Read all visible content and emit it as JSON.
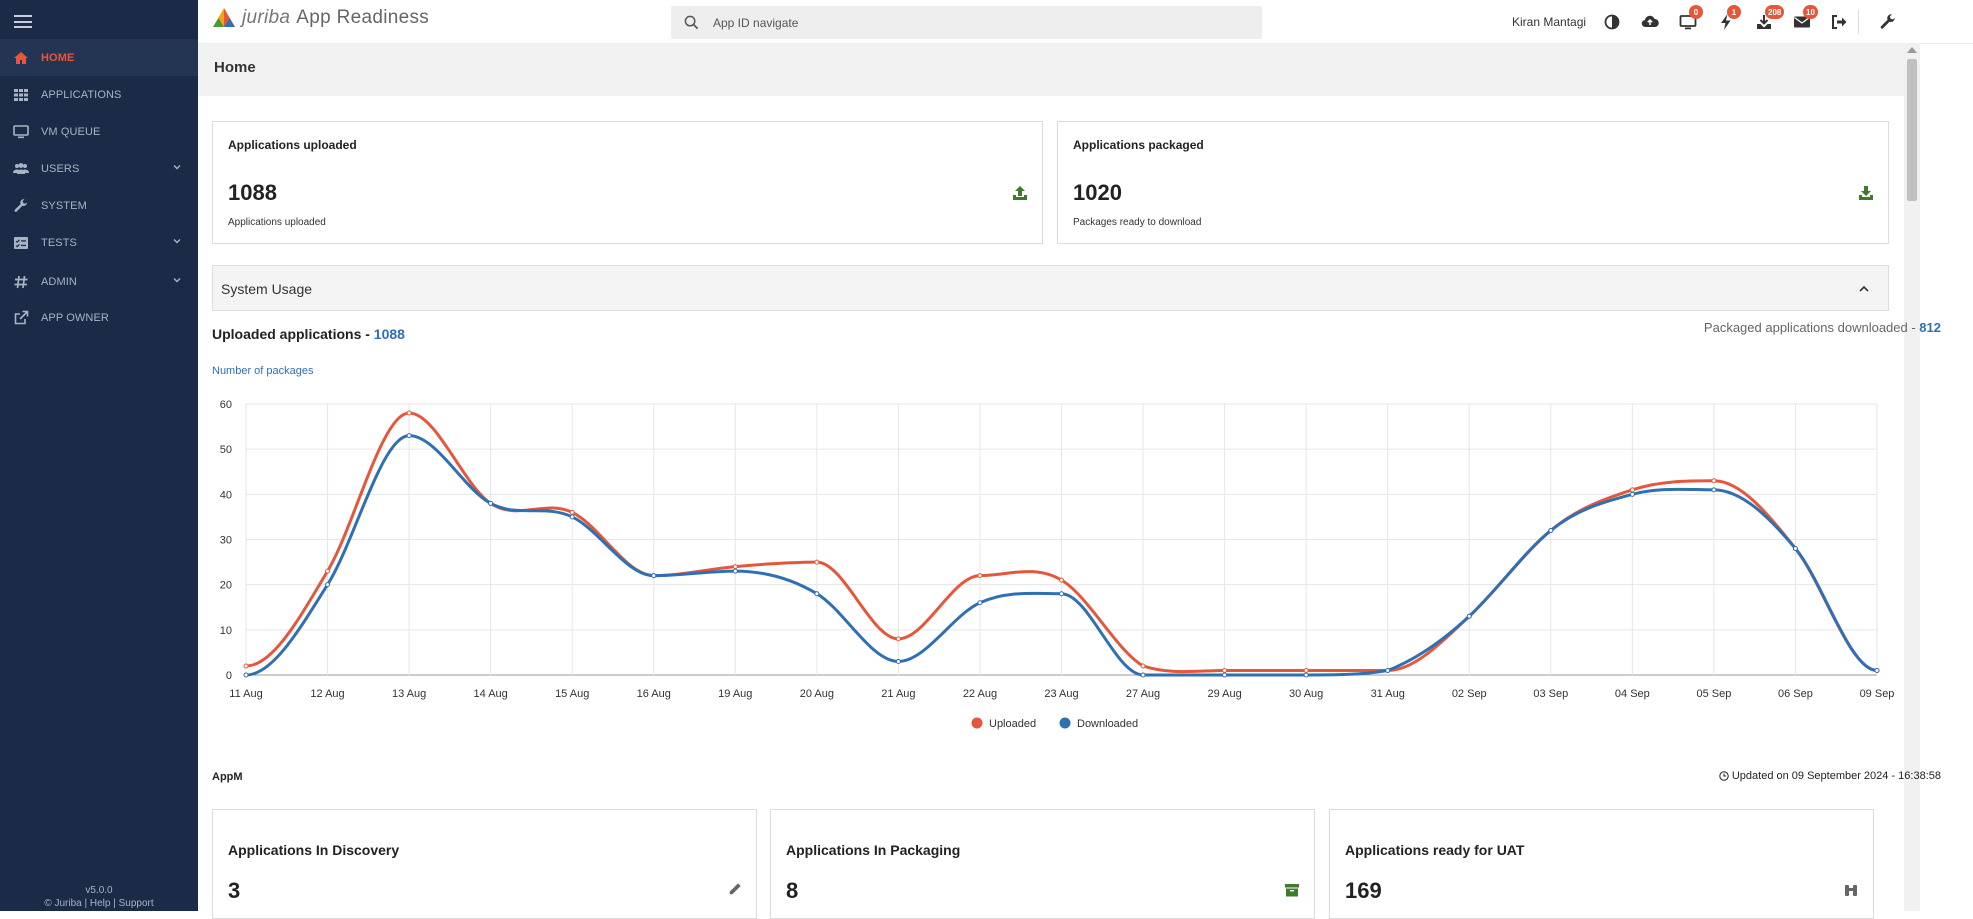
{
  "app": {
    "brand_logo": "juriba",
    "title": "App Readiness",
    "version": "v5.0.0"
  },
  "sidebar": {
    "items": [
      {
        "label": "HOME",
        "icon": "home-icon"
      },
      {
        "label": "APPLICATIONS",
        "icon": "grid-icon"
      },
      {
        "label": "VM QUEUE",
        "icon": "monitor-icon"
      },
      {
        "label": "USERS",
        "icon": "users-icon"
      },
      {
        "label": "SYSTEM",
        "icon": "wrench-icon"
      },
      {
        "label": "TESTS",
        "icon": "checklist-icon"
      },
      {
        "label": "ADMIN",
        "icon": "hash-icon"
      },
      {
        "label": "APP OWNER",
        "icon": "external-link-icon"
      }
    ],
    "footer_version": "v5.0.0",
    "footer_copy": "© Juriba",
    "footer_help": "Help",
    "footer_support": "Support",
    "footer_sep": "|"
  },
  "topbar": {
    "search_placeholder": "App ID navigate",
    "user_name": "Kiran Mantagi",
    "badges": {
      "vm": "0",
      "alerts": "1",
      "downloads": "208",
      "messages": "10"
    }
  },
  "page": {
    "title": "Home"
  },
  "cards": {
    "uploaded": {
      "title": "Applications uploaded",
      "value": "1088",
      "sub": "Applications uploaded"
    },
    "packaged": {
      "title": "Applications packaged",
      "value": "1020",
      "sub": "Packages ready to download"
    }
  },
  "system_usage": {
    "label": "System Usage",
    "uploaded_title": "Uploaded applications - ",
    "uploaded_total": "1088",
    "downloaded_title": "Packaged applications downloaded - ",
    "downloaded_total": "812",
    "ylabel": "Number of packages"
  },
  "chart_data": {
    "type": "line",
    "categories": [
      "11 Aug",
      "12 Aug",
      "13 Aug",
      "14 Aug",
      "15 Aug",
      "16 Aug",
      "19 Aug",
      "20 Aug",
      "21 Aug",
      "22 Aug",
      "23 Aug",
      "27 Aug",
      "29 Aug",
      "30 Aug",
      "31 Aug",
      "02 Sep",
      "03 Sep",
      "04 Sep",
      "05 Sep",
      "06 Sep",
      "09 Sep"
    ],
    "series": [
      {
        "name": "Uploaded",
        "color": "#e5573a",
        "values": [
          2,
          23,
          58,
          38,
          36,
          22,
          24,
          25,
          8,
          22,
          21,
          2,
          1,
          1,
          1,
          13,
          32,
          41,
          43,
          28,
          1
        ]
      },
      {
        "name": "Downloaded",
        "color": "#2f6fb4",
        "values": [
          0,
          20,
          53,
          38,
          35,
          22,
          23,
          18,
          3,
          16,
          18,
          0,
          0,
          0,
          1,
          13,
          32,
          40,
          41,
          28,
          1
        ]
      }
    ],
    "ylim": [
      0,
      60
    ],
    "yticks": [
      0,
      10,
      20,
      30,
      40,
      50,
      60
    ],
    "ylabel": "Number of packages",
    "grid": true,
    "legend": "bottom-center"
  },
  "appm": {
    "label": "AppM",
    "updated": "Updated on 09 September 2024 - 16:38:58",
    "cards": [
      {
        "title": "Applications In Discovery",
        "value": "3",
        "icon": "pencil-icon"
      },
      {
        "title": "Applications In Packaging",
        "value": "8",
        "icon": "archive-icon"
      },
      {
        "title": "Applications ready for UAT",
        "value": "169",
        "icon": "binoculars-icon"
      }
    ]
  },
  "colors": {
    "sidebar": "#1b2a47",
    "accent": "#e5573a",
    "blue": "#2f6fb4",
    "green": "#3d7a2a"
  }
}
